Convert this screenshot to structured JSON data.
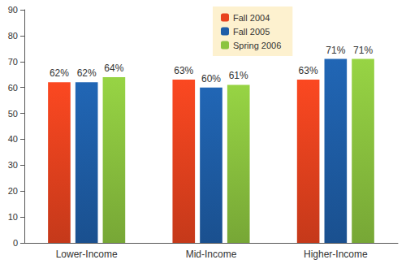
{
  "chart_data": {
    "type": "bar",
    "categories": [
      "Lower-Income",
      "Mid-Income",
      "Higher-Income"
    ],
    "series": [
      {
        "name": "Fall 2004",
        "color": "#e8431f",
        "values": [
          62,
          63,
          63
        ],
        "value_labels": [
          "62%",
          "63%",
          "63%"
        ]
      },
      {
        "name": "Fall 2005",
        "color": "#1f5ea8",
        "values": [
          62,
          60,
          71
        ],
        "value_labels": [
          "62%",
          "60%",
          "71%"
        ]
      },
      {
        "name": "Spring 2006",
        "color": "#8cc43f",
        "values": [
          64,
          61,
          71
        ],
        "value_labels": [
          "64%",
          "61%",
          "71%"
        ]
      }
    ],
    "ylim": [
      0,
      90
    ],
    "yticks": [
      0,
      10,
      20,
      30,
      40,
      50,
      60,
      70,
      80,
      90
    ],
    "grid": false,
    "legend": "top",
    "data_labels": true
  }
}
